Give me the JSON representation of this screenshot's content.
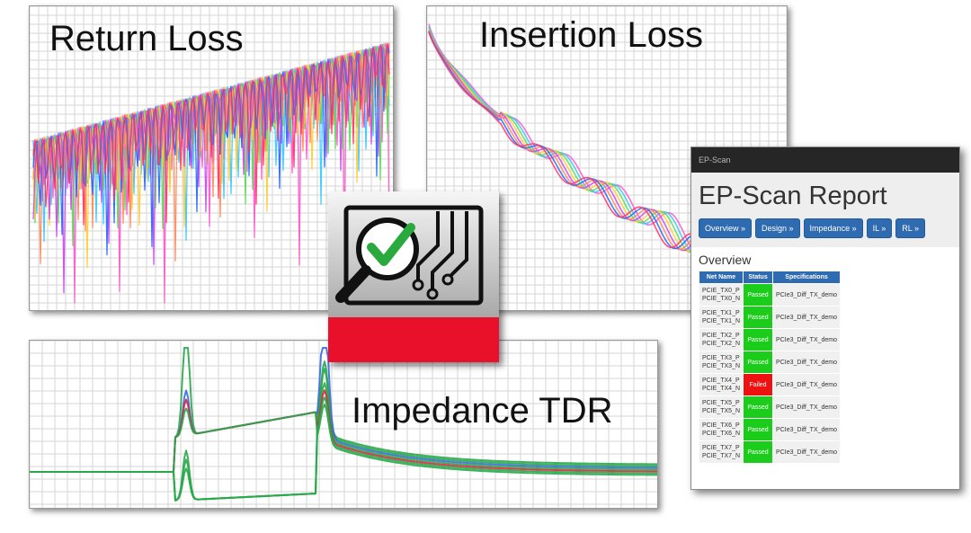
{
  "panels": {
    "return_loss": {
      "title": "Return Loss"
    },
    "insertion_loss": {
      "title": "Insertion Loss"
    },
    "impedance": {
      "title": "Impedance TDR"
    }
  },
  "colors": {
    "accent_red": "#e8102a",
    "logo_green": "#2aaa3e",
    "button_blue": "#2f6bb0",
    "pass_green": "#1bcc1b",
    "fail_red": "#ee1111",
    "trace_colors": [
      "#ff55cc",
      "#33c8ff",
      "#55dd55",
      "#ffcc33",
      "#cc44ee",
      "#ff8855",
      "#2266ff",
      "#ff3366"
    ]
  },
  "report": {
    "app_label": "EP-Scan",
    "title": "EP-Scan Report",
    "nav": [
      "Overview »",
      "Design »",
      "Impedance »",
      "IL »",
      "RL »"
    ],
    "section_title": "Overview",
    "columns": [
      "Net Name",
      "Status",
      "Specifications"
    ],
    "rows": [
      {
        "net_p": "PCIE_TX0_P",
        "net_n": "PCIE_TX0_N",
        "status": "Passed",
        "spec": "PCIe3_Diff_TX_demo"
      },
      {
        "net_p": "PCIE_TX1_P",
        "net_n": "PCIE_TX1_N",
        "status": "Passed",
        "spec": "PCIe3_Diff_TX_demo"
      },
      {
        "net_p": "PCIE_TX2_P",
        "net_n": "PCIE_TX2_N",
        "status": "Passed",
        "spec": "PCIe3_Diff_TX_demo"
      },
      {
        "net_p": "PCIE_TX3_P",
        "net_n": "PCIE_TX3_N",
        "status": "Passed",
        "spec": "PCIe3_Diff_TX_demo"
      },
      {
        "net_p": "PCIE_TX4_P",
        "net_n": "PCIE_TX4_N",
        "status": "Failed",
        "spec": "PCIe3_Diff_TX_demo"
      },
      {
        "net_p": "PCIE_TX5_P",
        "net_n": "PCIE_TX5_N",
        "status": "Passed",
        "spec": "PCIe3_Diff_TX_demo"
      },
      {
        "net_p": "PCIE_TX6_P",
        "net_n": "PCIE_TX6_N",
        "status": "Passed",
        "spec": "PCIe3_Diff_TX_demo"
      },
      {
        "net_p": "PCIE_TX7_P",
        "net_n": "PCIE_TX7_N",
        "status": "Passed",
        "spec": "PCIe3_Diff_TX_demo"
      }
    ]
  }
}
